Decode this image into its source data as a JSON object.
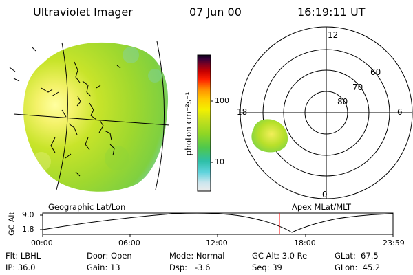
{
  "header": {
    "instrument": "Ultraviolet Imager",
    "date": "07 Jun 00",
    "time": "16:19:11 UT"
  },
  "left_panel": {
    "label": "Geographic Lat/Lon"
  },
  "right_panel": {
    "label": "Apex MLat/MLT",
    "mlt_labels": {
      "top": "12",
      "bottom": "0",
      "left": "18",
      "right": "6"
    },
    "lat_labels": [
      "60",
      "70",
      "80"
    ]
  },
  "colorbar": {
    "unit_label": "photon cm⁻²s⁻¹",
    "tick_labels": [
      "100",
      "10"
    ],
    "colors": [
      "#e8e8e8",
      "#cfe8ef",
      "#5ed0d8",
      "#2fbfb0",
      "#54c84a",
      "#9ad824",
      "#c8e020",
      "#ffff00",
      "#ffd000",
      "#ff9000",
      "#ff2a00",
      "#d00000",
      "#900000",
      "#40003a",
      "#0a0020"
    ]
  },
  "altitude_plot": {
    "ylabel": "GC Alt",
    "yticks": [
      "9.0",
      "1.8"
    ],
    "xticks": [
      "00:00",
      "06:00",
      "12:00",
      "18:00",
      "23:59"
    ],
    "marker_color": "#ff0000"
  },
  "footer": {
    "filter": "Flt: LBHL",
    "door": "Door: Open",
    "mode": "Mode: Normal",
    "gc_alt": "GC Alt: 3.0 Re",
    "glat": "GLat:  67.5",
    "ip": "IP: 36.0",
    "gain": "Gain: 13",
    "dsp": "Dsp:   -3.6",
    "seq": "Seq: 39",
    "glon": "GLon:  45.2"
  }
}
